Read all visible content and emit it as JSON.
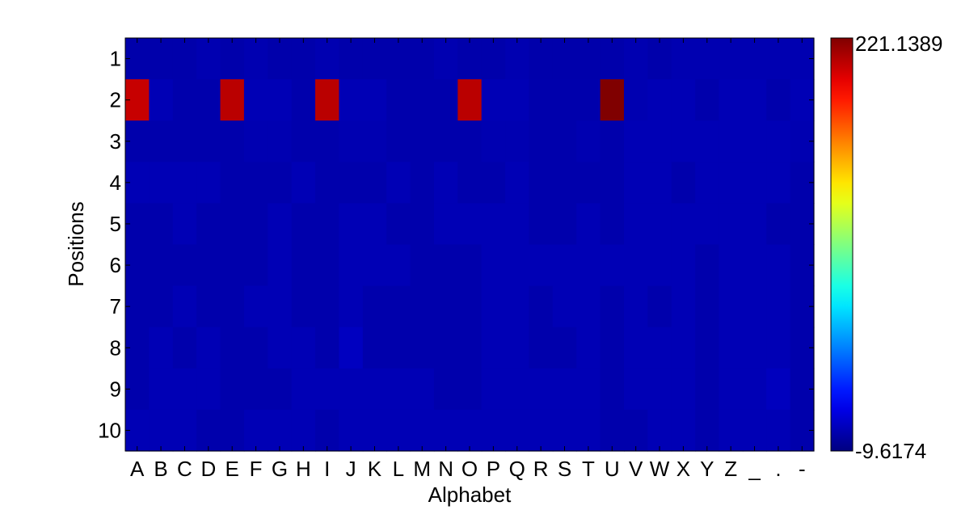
{
  "chart_data": {
    "type": "heatmap",
    "title": "",
    "xlabel": "Alphabet",
    "ylabel": "Positions",
    "x_categories": [
      "A",
      "B",
      "C",
      "D",
      "E",
      "F",
      "G",
      "H",
      "I",
      "J",
      "K",
      "L",
      "M",
      "N",
      "O",
      "P",
      "Q",
      "R",
      "S",
      "T",
      "U",
      "V",
      "W",
      "X",
      "Y",
      "Z",
      "_",
      ".",
      "-"
    ],
    "y_categories": [
      "1",
      "2",
      "3",
      "4",
      "5",
      "6",
      "7",
      "8",
      "9",
      "10"
    ],
    "colorbar": {
      "min": -9.6174,
      "max": 221.1389,
      "max_label": "221.1389",
      "min_label": "-9.6174",
      "colormap": "jet"
    },
    "values": [
      [
        0.2,
        0.2,
        0.2,
        1.5,
        0.2,
        1.5,
        0.2,
        0.2,
        1.5,
        0.2,
        0.2,
        0.2,
        0.2,
        1.5,
        0.2,
        0.2,
        1.5,
        0.2,
        0.2,
        0.2,
        0.2,
        1.5,
        0.2,
        1.5,
        1.5,
        1.5,
        1.5,
        1.5,
        1.5
      ],
      [
        205.0,
        2.5,
        0.5,
        0.5,
        208.0,
        2.5,
        2.5,
        0.5,
        208.0,
        2.5,
        2.5,
        0.5,
        0.5,
        0.5,
        208.0,
        2.5,
        2.5,
        0.5,
        0.5,
        0.5,
        221.1389,
        1.5,
        2.5,
        2.5,
        0.5,
        2.5,
        2.5,
        0.5,
        2.5
      ],
      [
        0.5,
        0.5,
        0.5,
        0.5,
        0.5,
        1.5,
        1.5,
        0.5,
        0.5,
        1.5,
        1.5,
        0.5,
        0.5,
        0.5,
        0.5,
        1.5,
        1.5,
        0.5,
        0.5,
        1.5,
        0.5,
        2.5,
        2.5,
        2.5,
        2.5,
        2.5,
        2.5,
        2.5,
        1.5
      ],
      [
        2.5,
        2.5,
        2.5,
        2.5,
        0.5,
        0.5,
        0.5,
        2.5,
        0.5,
        0.5,
        0.5,
        2.5,
        0.5,
        2.5,
        0.5,
        0.5,
        2.5,
        0.5,
        0.5,
        0.5,
        0.5,
        2.5,
        2.5,
        0.5,
        2.5,
        2.5,
        2.5,
        2.5,
        0.5
      ],
      [
        0.5,
        0.5,
        2.5,
        0.5,
        0.5,
        0.5,
        2.5,
        0.5,
        0.5,
        2.5,
        2.5,
        0.5,
        0.5,
        2.5,
        2.5,
        2.5,
        2.5,
        0.5,
        0.5,
        2.5,
        0.5,
        2.5,
        2.5,
        2.5,
        2.5,
        2.5,
        2.5,
        0.5,
        0.5
      ],
      [
        0.5,
        0.5,
        0.5,
        0.5,
        0.5,
        0.5,
        2.5,
        0.5,
        0.5,
        2.5,
        2.5,
        2.5,
        0.5,
        0.5,
        0.5,
        2.5,
        2.5,
        2.5,
        2.5,
        2.5,
        2.5,
        2.5,
        2.5,
        2.5,
        0.5,
        2.5,
        2.5,
        2.5,
        0.5
      ],
      [
        0.5,
        0.5,
        2.5,
        0.5,
        0.5,
        2.5,
        2.5,
        0.5,
        0.5,
        2.5,
        0.5,
        0.5,
        0.5,
        0.5,
        0.5,
        2.5,
        2.5,
        0.5,
        2.5,
        2.5,
        0.5,
        2.5,
        0.5,
        2.5,
        0.5,
        2.5,
        2.5,
        2.5,
        0.5
      ],
      [
        0.5,
        2.5,
        0.5,
        2.5,
        0.5,
        0.5,
        2.5,
        2.5,
        0.5,
        5.0,
        0.5,
        0.5,
        0.5,
        0.5,
        0.5,
        2.5,
        2.5,
        0.5,
        0.5,
        2.5,
        0.5,
        2.5,
        2.5,
        2.5,
        0.5,
        2.5,
        2.5,
        2.5,
        0.5
      ],
      [
        0.5,
        2.5,
        2.5,
        2.5,
        0.5,
        0.5,
        0.5,
        2.5,
        2.5,
        2.5,
        2.5,
        2.5,
        2.5,
        0.5,
        0.5,
        2.5,
        2.5,
        2.5,
        2.5,
        2.5,
        0.5,
        2.5,
        2.5,
        2.5,
        0.5,
        2.5,
        2.5,
        4.5,
        0.5
      ],
      [
        2.5,
        2.5,
        2.5,
        0.5,
        0.5,
        2.5,
        2.5,
        2.5,
        0.5,
        2.5,
        2.5,
        2.5,
        2.5,
        2.5,
        2.5,
        2.5,
        2.5,
        2.5,
        2.5,
        2.5,
        0.5,
        0.5,
        2.5,
        2.5,
        0.5,
        2.5,
        2.5,
        2.5,
        0.5
      ]
    ],
    "grid": false
  }
}
